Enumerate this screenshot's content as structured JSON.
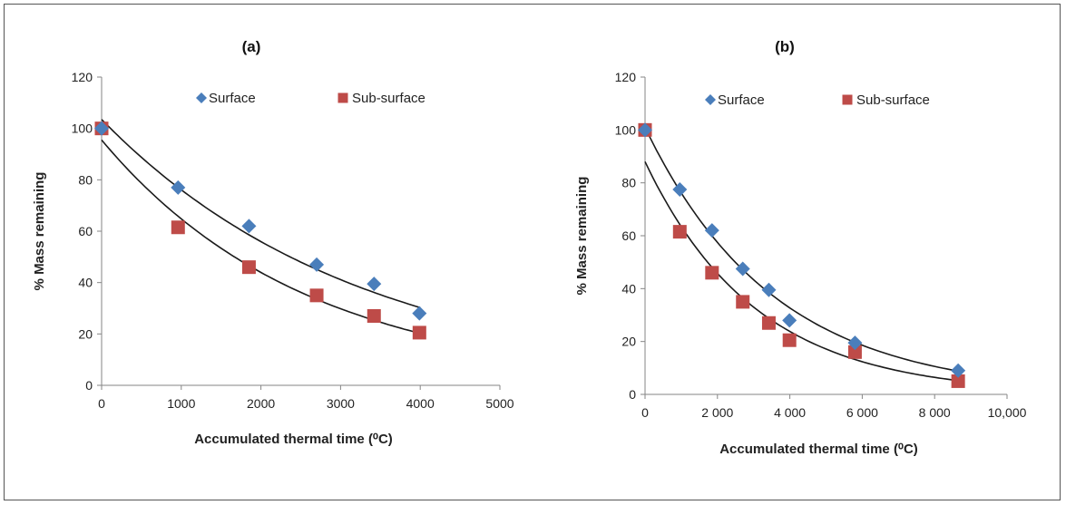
{
  "colors": {
    "surface": "#4a7ebb",
    "subsurface": "#be4b48",
    "axis": "#868686",
    "curve": "#1a1a1a"
  },
  "chart_data": [
    {
      "type": "scatter",
      "panel_title": "(a)",
      "xlabel": "Accumulated thermal time (⁰C)",
      "ylabel": "% Mass remaining",
      "xlim": [
        0,
        5000
      ],
      "ylim": [
        0,
        120
      ],
      "x_ticks": [
        "0",
        "1000",
        "2000",
        "3000",
        "4000",
        "5000"
      ],
      "y_ticks": [
        "0",
        "20",
        "40",
        "60",
        "80",
        "100",
        "120"
      ],
      "legend": [
        "Surface",
        "Sub-surface"
      ],
      "legend_position": "top",
      "series": [
        {
          "name": "Surface",
          "marker": "diamond",
          "points": [
            [
              0,
              100
            ],
            [
              960,
              77
            ],
            [
              1850,
              62
            ],
            [
              2700,
              47
            ],
            [
              3420,
              39.5
            ],
            [
              3990,
              28
            ]
          ]
        },
        {
          "name": "Sub-surface",
          "marker": "square",
          "points": [
            [
              0,
              100
            ],
            [
              960,
              61.5
            ],
            [
              1850,
              46
            ],
            [
              2700,
              35
            ],
            [
              3420,
              27
            ],
            [
              3990,
              20.5
            ]
          ]
        }
      ],
      "trendlines": [
        {
          "series": "Surface",
          "type": "exponential",
          "a": 103.5,
          "b": 0.0003075,
          "x_range": [
            0,
            4000
          ]
        },
        {
          "series": "Sub-surface",
          "type": "exponential",
          "a": 95.5,
          "b": 0.000388,
          "x_range": [
            0,
            4000
          ]
        }
      ]
    },
    {
      "type": "scatter",
      "panel_title": "(b)",
      "xlabel": "Accumulated thermal time (⁰C)",
      "ylabel": "% Mass remaining",
      "xlim": [
        0,
        10000
      ],
      "ylim": [
        0,
        120
      ],
      "x_ticks": [
        "0",
        "2 000",
        "4 000",
        "6 000",
        "8 000",
        "10,000"
      ],
      "y_ticks": [
        "0",
        "20",
        "40",
        "60",
        "80",
        "100",
        "120"
      ],
      "legend": [
        "Surface",
        "Sub-surface"
      ],
      "legend_position": "top",
      "series": [
        {
          "name": "Surface",
          "marker": "diamond",
          "points": [
            [
              0,
              100
            ],
            [
              960,
              77.5
            ],
            [
              1850,
              62
            ],
            [
              2700,
              47.5
            ],
            [
              3420,
              39.5
            ],
            [
              3990,
              28
            ],
            [
              5800,
              19.5
            ],
            [
              8650,
              9
            ]
          ]
        },
        {
          "name": "Sub-surface",
          "marker": "square",
          "points": [
            [
              0,
              100
            ],
            [
              960,
              61.5
            ],
            [
              1850,
              46
            ],
            [
              2700,
              35
            ],
            [
              3420,
              27
            ],
            [
              3990,
              20.5
            ],
            [
              5800,
              16
            ],
            [
              8650,
              5
            ]
          ]
        }
      ],
      "trendlines": [
        {
          "series": "Surface",
          "type": "exponential",
          "a": 101,
          "b": 0.000282,
          "x_range": [
            0,
            8650
          ]
        },
        {
          "series": "Sub-surface",
          "type": "exponential",
          "a": 88,
          "b": 0.000327,
          "x_range": [
            0,
            8650
          ]
        }
      ]
    }
  ]
}
